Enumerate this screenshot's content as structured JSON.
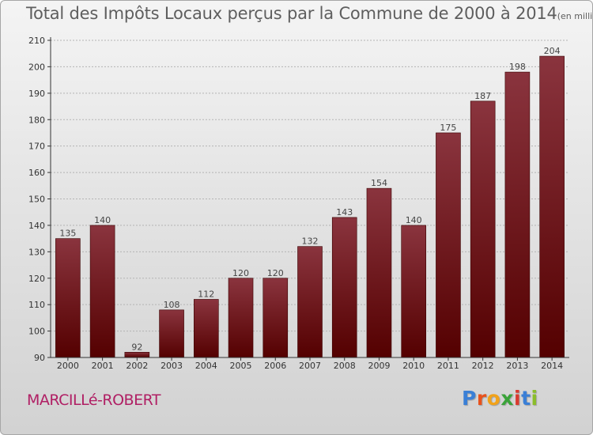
{
  "title": "Total des Impôts Locaux perçus par la Commune de 2000 à 2014",
  "unit_note": "(en milliers d'€)",
  "commune": "MARCILLé-ROBERT",
  "logo_text": "Proxiti",
  "colors": {
    "bar_top": "#8a343e",
    "bar_bottom": "#540000",
    "title": "#5e5e5e",
    "commune": "#b01f64"
  },
  "chart_data": {
    "type": "bar",
    "title": "Total des Impôts Locaux perçus par la Commune de 2000 à 2014",
    "xlabel": "",
    "ylabel": "",
    "categories": [
      "2000",
      "2001",
      "2002",
      "2003",
      "2004",
      "2005",
      "2006",
      "2007",
      "2008",
      "2009",
      "2010",
      "2011",
      "2012",
      "2013",
      "2014"
    ],
    "values": [
      135,
      140,
      92,
      108,
      112,
      120,
      120,
      132,
      143,
      154,
      140,
      175,
      187,
      198,
      204
    ],
    "ylim": [
      90,
      210
    ],
    "yticks": [
      90,
      100,
      110,
      120,
      130,
      140,
      150,
      160,
      170,
      180,
      190,
      200,
      210
    ],
    "grid": true,
    "legend": "none"
  }
}
